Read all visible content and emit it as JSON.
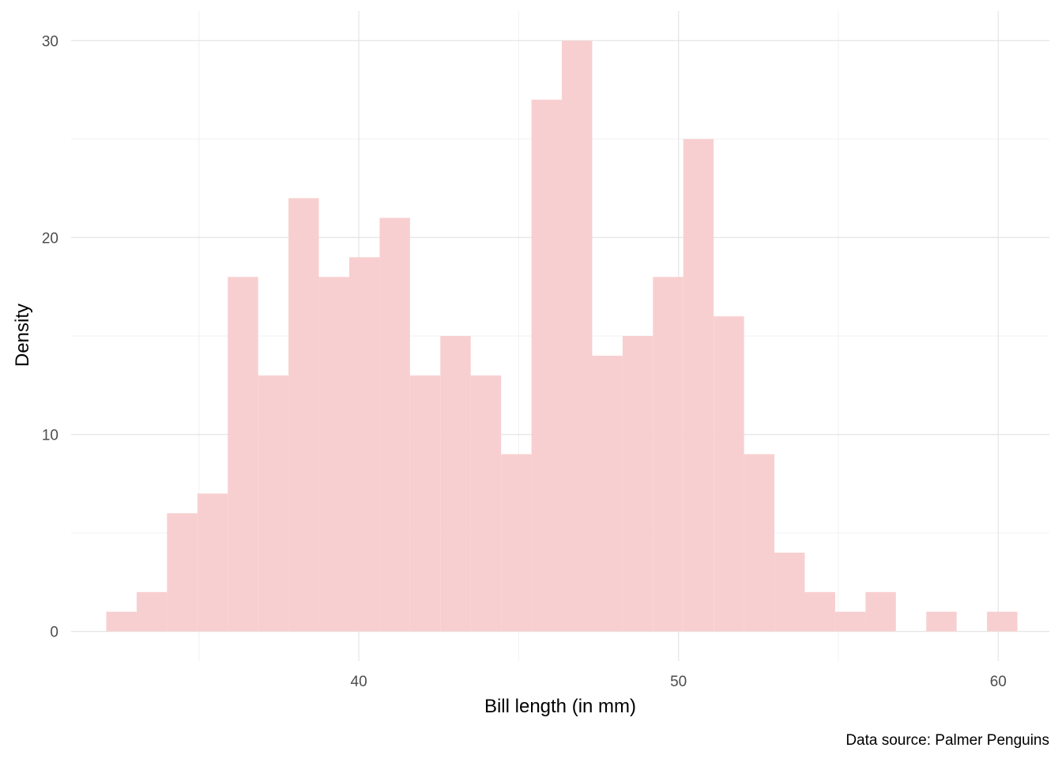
{
  "chart_data": {
    "type": "bar",
    "subtype": "histogram",
    "xlabel": "Bill length (in mm)",
    "ylabel": "Density",
    "caption": "Data source: Palmer Penguins",
    "xlim": [
      31.0,
      61.6
    ],
    "ylim": [
      -1.5,
      31.5
    ],
    "x_major_ticks": [
      40,
      50,
      60
    ],
    "x_minor_ticks": [
      35,
      45,
      55
    ],
    "y_major_ticks": [
      0,
      10,
      20,
      30
    ],
    "y_minor_ticks": [
      5,
      15,
      25
    ],
    "bar_color": "#f8cfd0",
    "grid": true,
    "bin_width": 0.95,
    "bins": [
      {
        "start": 32.1,
        "end": 33.05,
        "count": 1
      },
      {
        "start": 33.05,
        "end": 34.0,
        "count": 2
      },
      {
        "start": 34.0,
        "end": 34.95,
        "count": 6
      },
      {
        "start": 34.95,
        "end": 35.9,
        "count": 7
      },
      {
        "start": 35.9,
        "end": 36.85,
        "count": 18
      },
      {
        "start": 36.85,
        "end": 37.8,
        "count": 13
      },
      {
        "start": 37.8,
        "end": 38.75,
        "count": 22
      },
      {
        "start": 38.75,
        "end": 39.7,
        "count": 18
      },
      {
        "start": 39.7,
        "end": 40.65,
        "count": 19
      },
      {
        "start": 40.65,
        "end": 41.6,
        "count": 21
      },
      {
        "start": 41.6,
        "end": 42.55,
        "count": 13
      },
      {
        "start": 42.55,
        "end": 43.5,
        "count": 15
      },
      {
        "start": 43.5,
        "end": 44.45,
        "count": 13
      },
      {
        "start": 44.45,
        "end": 45.4,
        "count": 9
      },
      {
        "start": 45.4,
        "end": 46.35,
        "count": 27
      },
      {
        "start": 46.35,
        "end": 47.3,
        "count": 30
      },
      {
        "start": 47.3,
        "end": 48.25,
        "count": 14
      },
      {
        "start": 48.25,
        "end": 49.2,
        "count": 15
      },
      {
        "start": 49.2,
        "end": 50.15,
        "count": 18
      },
      {
        "start": 50.15,
        "end": 51.1,
        "count": 25
      },
      {
        "start": 51.1,
        "end": 52.05,
        "count": 16
      },
      {
        "start": 52.05,
        "end": 53.0,
        "count": 9
      },
      {
        "start": 53.0,
        "end": 53.95,
        "count": 4
      },
      {
        "start": 53.95,
        "end": 54.9,
        "count": 2
      },
      {
        "start": 54.9,
        "end": 55.85,
        "count": 1
      },
      {
        "start": 55.85,
        "end": 56.8,
        "count": 2
      },
      {
        "start": 56.8,
        "end": 57.75,
        "count": 0
      },
      {
        "start": 57.75,
        "end": 58.7,
        "count": 1
      },
      {
        "start": 58.7,
        "end": 59.65,
        "count": 0
      },
      {
        "start": 59.65,
        "end": 60.6,
        "count": 1
      }
    ]
  }
}
